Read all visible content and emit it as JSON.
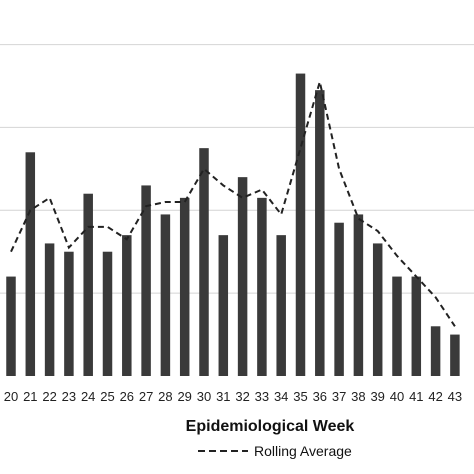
{
  "chart_data": {
    "type": "bar",
    "title": "",
    "xlabel": "Epidemiological Week",
    "ylabel": "",
    "ylim": [
      0,
      8.4
    ],
    "grid": true,
    "legend_position": "bottom",
    "categories": [
      "20",
      "21",
      "22",
      "23",
      "24",
      "25",
      "26",
      "27",
      "28",
      "29",
      "30",
      "31",
      "32",
      "33",
      "34",
      "35",
      "36",
      "37",
      "38",
      "39",
      "40",
      "41",
      "42",
      "43"
    ],
    "series": [
      {
        "name": "",
        "type": "bar",
        "color": "#3a3a3a",
        "values": [
          2.4,
          5.4,
          3.2,
          3.0,
          4.4,
          3.0,
          3.4,
          4.6,
          3.9,
          4.3,
          5.5,
          3.4,
          4.8,
          4.3,
          3.4,
          7.3,
          6.9,
          3.7,
          3.9,
          3.2,
          2.4,
          2.4,
          1.2,
          1.0
        ]
      },
      {
        "name": "Rolling Average",
        "type": "line",
        "style": "dashed",
        "color": "#222222",
        "values": [
          3.0,
          4.0,
          4.3,
          3.1,
          3.6,
          3.6,
          3.3,
          4.1,
          4.2,
          4.2,
          5.0,
          4.6,
          4.3,
          4.5,
          3.9,
          5.5,
          7.1,
          5.0,
          3.8,
          3.5,
          2.9,
          2.4,
          1.9,
          1.2
        ]
      }
    ]
  },
  "legend": {
    "line_label": "Rolling Average"
  }
}
